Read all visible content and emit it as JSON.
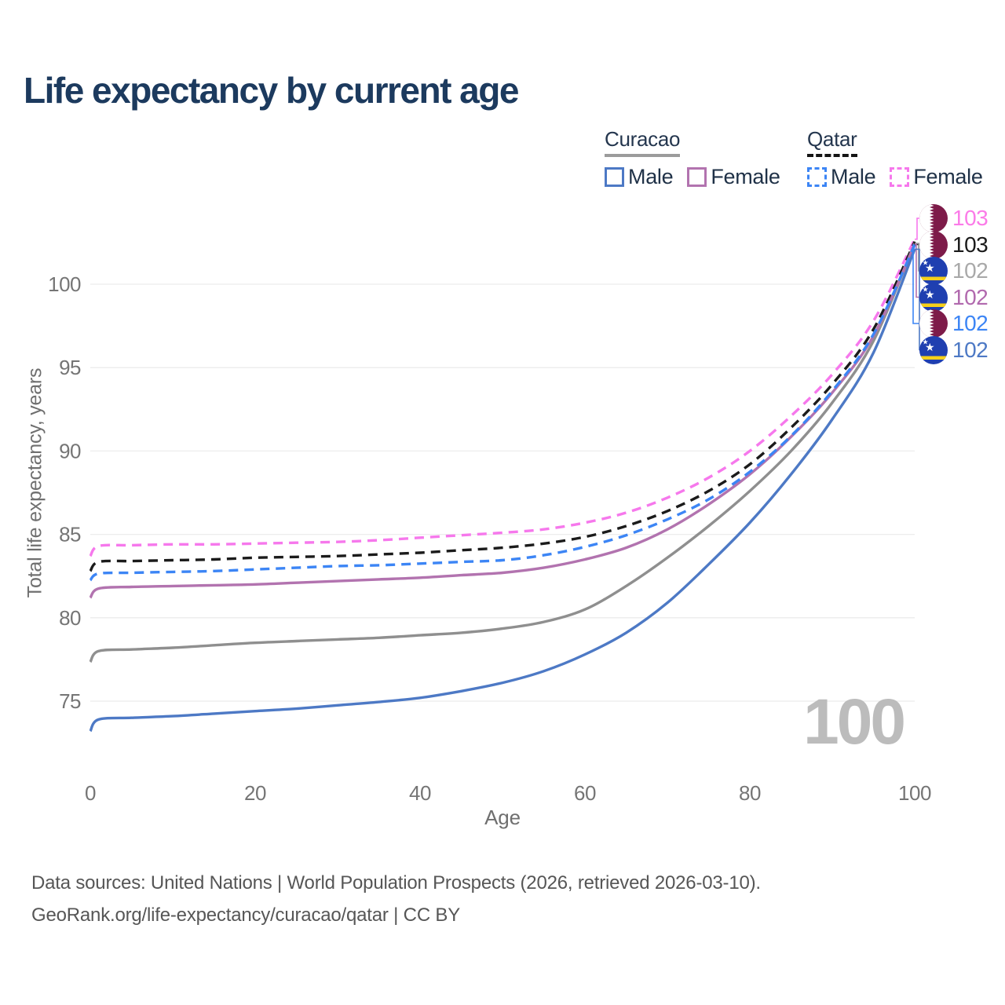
{
  "title": "Life expectancy by current age",
  "legend": {
    "groups": [
      {
        "label": "Curacao",
        "line_style": "solid",
        "underline_color": "#9b9b9b",
        "items": [
          {
            "label": "Male",
            "color": "#4d79c5",
            "dashed": false
          },
          {
            "label": "Female",
            "color": "#b273af",
            "dashed": false
          }
        ]
      },
      {
        "label": "Qatar",
        "line_style": "dashed",
        "underline_color": "#141414",
        "items": [
          {
            "label": "Male",
            "color": "#3c85f5",
            "dashed": true
          },
          {
            "label": "Female",
            "color": "#f678ec",
            "dashed": true
          }
        ]
      }
    ]
  },
  "chart_data": {
    "type": "line",
    "title": "Life expectancy by current age",
    "xlabel": "Age",
    "ylabel": "Total life expectancy, years",
    "x_ticks": [
      0,
      20,
      40,
      60,
      80,
      100
    ],
    "y_ticks": [
      75,
      80,
      85,
      90,
      95,
      100
    ],
    "xlim": [
      0,
      100
    ],
    "ylim": [
      72.5,
      103.5
    ],
    "grid": "horizontal-only",
    "legend_position": "top-right",
    "watermark_age": "100",
    "ages": [
      0,
      1,
      5,
      10,
      15,
      20,
      25,
      30,
      35,
      40,
      45,
      50,
      55,
      60,
      65,
      70,
      75,
      80,
      85,
      90,
      95,
      100
    ],
    "series": [
      {
        "name": "Qatar Female",
        "country": "Qatar",
        "sex": "Female",
        "color": "#f678ec",
        "dashed": true,
        "flag": "qatar",
        "end_label": "103",
        "label_color": "#fb7be8",
        "values": [
          83.7,
          84.3,
          84.35,
          84.4,
          84.4,
          84.45,
          84.5,
          84.55,
          84.65,
          84.8,
          84.95,
          85.1,
          85.3,
          85.7,
          86.3,
          87.2,
          88.4,
          90.0,
          92.1,
          94.6,
          97.8,
          102.7
        ]
      },
      {
        "name": "Qatar",
        "country": "Qatar",
        "sex": "Both",
        "color": "#1b1b1b",
        "dashed": true,
        "flag": "qatar",
        "end_label": "103",
        "label_color": "#1a1a1a",
        "values": [
          82.8,
          83.35,
          83.4,
          83.45,
          83.5,
          83.6,
          83.65,
          83.7,
          83.8,
          83.9,
          84.05,
          84.2,
          84.45,
          84.85,
          85.5,
          86.4,
          87.6,
          89.2,
          91.4,
          94.0,
          97.3,
          102.55
        ]
      },
      {
        "name": "Curacao",
        "country": "Curacao",
        "sex": "Both",
        "color": "#8f8f8f",
        "dashed": false,
        "flag": "curacao",
        "end_label": "102",
        "label_color": "#a9a9a9",
        "values": [
          77.35,
          78.0,
          78.1,
          78.2,
          78.35,
          78.5,
          78.6,
          78.7,
          78.8,
          78.95,
          79.1,
          79.35,
          79.75,
          80.5,
          81.9,
          83.6,
          85.5,
          87.6,
          90.0,
          92.9,
          96.6,
          102.45
        ]
      },
      {
        "name": "Curacao Female",
        "country": "Curacao",
        "sex": "Female",
        "color": "#b273af",
        "dashed": false,
        "flag": "curacao",
        "end_label": "102",
        "label_color": "#b169ae",
        "values": [
          81.2,
          81.75,
          81.85,
          81.9,
          81.95,
          82.0,
          82.1,
          82.2,
          82.3,
          82.4,
          82.55,
          82.7,
          83.0,
          83.5,
          84.2,
          85.3,
          86.8,
          88.6,
          90.85,
          93.5,
          96.9,
          102.4
        ]
      },
      {
        "name": "Qatar Male",
        "country": "Qatar",
        "sex": "Male",
        "color": "#3c85f5",
        "dashed": true,
        "flag": "qatar",
        "end_label": "102",
        "label_color": "#3c85f5",
        "values": [
          82.25,
          82.65,
          82.7,
          82.75,
          82.8,
          82.9,
          83.0,
          83.1,
          83.15,
          83.25,
          83.35,
          83.45,
          83.75,
          84.25,
          84.95,
          85.9,
          87.1,
          88.75,
          90.9,
          93.6,
          97.0,
          102.35
        ]
      },
      {
        "name": "Curacao Male",
        "country": "Curacao",
        "sex": "Male",
        "color": "#4d79c5",
        "dashed": false,
        "flag": "curacao",
        "end_label": "102",
        "label_color": "#4d79c5",
        "values": [
          73.2,
          73.9,
          74.0,
          74.1,
          74.25,
          74.4,
          74.55,
          74.75,
          74.95,
          75.2,
          75.6,
          76.1,
          76.8,
          77.8,
          79.1,
          80.9,
          83.2,
          85.7,
          88.6,
          91.9,
          95.9,
          102.1
        ]
      }
    ]
  },
  "footer": {
    "line1": "Data sources: United Nations | World Population Prospects (2026, retrieved 2026-03-10).",
    "line2": "GeoRank.org/life-expectancy/curacao/qatar | CC BY"
  }
}
